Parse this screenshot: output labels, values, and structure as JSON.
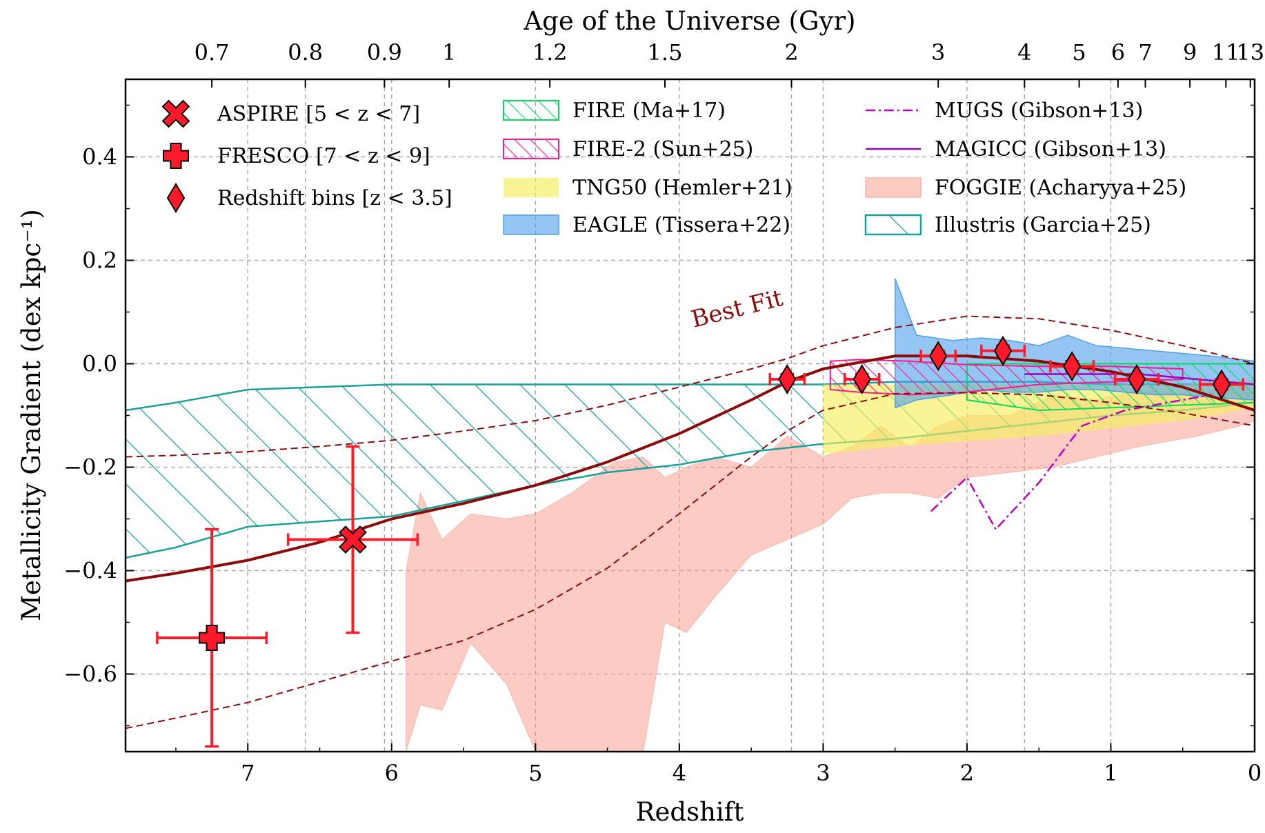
{
  "chart_data": {
    "type": "scatter",
    "xlabel": "Redshift",
    "ylabel": "Metallicity Gradient (dex kpc⁻¹)",
    "top_xlabel": "Age of the Universe (Gyr)",
    "xlim": [
      7.85,
      0
    ],
    "ylim": [
      -0.75,
      0.55
    ],
    "x_ticks": [
      "7",
      "6",
      "5",
      "4",
      "3",
      "2",
      "1",
      "0"
    ],
    "y_ticks": [
      "0.4",
      "0.2",
      "0.0",
      "−0.2",
      "−0.4",
      "−0.6"
    ],
    "top_ticks": [
      {
        "label": "0.7",
        "z": 7.25
      },
      {
        "label": "0.8",
        "z": 6.6
      },
      {
        "label": "0.9",
        "z": 6.05
      },
      {
        "label": "1",
        "z": 5.6
      },
      {
        "label": "1.2",
        "z": 4.9
      },
      {
        "label": "1.5",
        "z": 4.1
      },
      {
        "label": "2",
        "z": 3.22
      },
      {
        "label": "3",
        "z": 2.2
      },
      {
        "label": "4",
        "z": 1.6
      },
      {
        "label": "5",
        "z": 1.22
      },
      {
        "label": "6",
        "z": 0.95
      },
      {
        "label": "7",
        "z": 0.76
      },
      {
        "label": "9",
        "z": 0.45
      },
      {
        "label": "11",
        "z": 0.2
      },
      {
        "label": "13",
        "z": 0.03
      }
    ],
    "grid": true,
    "legend_position": "top",
    "colors": {
      "observed": "#ff1a2a",
      "best_fit": "#8b0a0a",
      "fire": "#00e05a",
      "fire2": "#ff1493",
      "tng50": "#f6f060",
      "eagle": "#4f9fea",
      "mugs": "#c000c0",
      "magicc": "#a000c0",
      "foggie": "#fa9a8a",
      "illustris": "#16a29a",
      "grid": "#aaaaaa"
    },
    "legend": [
      {
        "key": "aspire",
        "label": "ASPIRE  [5 < z < 7]",
        "marker": "x"
      },
      {
        "key": "fresco",
        "label": "FRESCO [7 < z < 9]",
        "marker": "plus"
      },
      {
        "key": "bins",
        "label": "Redshift bins [z < 3.5]",
        "marker": "diamond"
      },
      {
        "key": "fire",
        "label": "FIRE (Ma+17)",
        "marker": "hatch-green"
      },
      {
        "key": "fire2",
        "label": "FIRE-2 (Sun+25)",
        "marker": "hatch-pink"
      },
      {
        "key": "tng50",
        "label": "TNG50 (Hemler+21)",
        "marker": "fill-yellow"
      },
      {
        "key": "eagle",
        "label": "EAGLE (Tissera+22)",
        "marker": "fill-blue"
      },
      {
        "key": "mugs",
        "label": "MUGS (Gibson+13)",
        "marker": "dashdot"
      },
      {
        "key": "magicc",
        "label": "MAGICC (Gibson+13)",
        "marker": "line"
      },
      {
        "key": "foggie",
        "label": "FOGGIE (Acharyya+25)",
        "marker": "fill-salmon"
      },
      {
        "key": "illustris",
        "label": "Illustris (Garcia+25)",
        "marker": "hatch-teal"
      }
    ],
    "annotation": {
      "text": "Best Fit",
      "x": 3.9,
      "y": 0.07
    },
    "series": [
      {
        "name": "ASPIRE",
        "points": [
          {
            "x": 6.27,
            "y": -0.34,
            "xerr": [
              0.45,
              0.45
            ],
            "yerr": [
              0.18,
              0.18
            ]
          }
        ]
      },
      {
        "name": "FRESCO",
        "points": [
          {
            "x": 7.25,
            "y": -0.53,
            "xerr": [
              0.38,
              0.38
            ],
            "yerr": [
              0.21,
              0.21
            ]
          }
        ]
      },
      {
        "name": "Redshift bins",
        "points": [
          {
            "x": 3.25,
            "y": -0.03,
            "xerr": [
              0.12,
              0.12
            ],
            "yerr": [
              0.01,
              0.01
            ]
          },
          {
            "x": 2.73,
            "y": -0.03,
            "xerr": [
              0.12,
              0.12
            ],
            "yerr": [
              0.01,
              0.01
            ]
          },
          {
            "x": 2.2,
            "y": 0.015,
            "xerr": [
              0.12,
              0.12
            ],
            "yerr": [
              0.01,
              0.01
            ]
          },
          {
            "x": 1.75,
            "y": 0.025,
            "xerr": [
              0.15,
              0.15
            ],
            "yerr": [
              0.01,
              0.01
            ]
          },
          {
            "x": 1.27,
            "y": -0.005,
            "xerr": [
              0.15,
              0.15
            ],
            "yerr": [
              0.01,
              0.01
            ]
          },
          {
            "x": 0.82,
            "y": -0.03,
            "xerr": [
              0.15,
              0.15
            ],
            "yerr": [
              0.01,
              0.01
            ]
          },
          {
            "x": 0.23,
            "y": -0.04,
            "xerr": [
              0.15,
              0.15
            ],
            "yerr": [
              0.01,
              0.01
            ]
          }
        ]
      }
    ],
    "best_fit": {
      "x": [
        7.85,
        7.5,
        7.0,
        6.5,
        6.0,
        5.5,
        5.0,
        4.5,
        4.0,
        3.5,
        3.25,
        3.0,
        2.5,
        2.0,
        1.5,
        1.0,
        0.5,
        0.0
      ],
      "y": [
        -0.42,
        -0.405,
        -0.38,
        -0.345,
        -0.3,
        -0.27,
        -0.235,
        -0.19,
        -0.135,
        -0.07,
        -0.035,
        -0.01,
        0.015,
        0.015,
        0.005,
        -0.015,
        -0.045,
        -0.09
      ],
      "upper": [
        -0.18,
        -0.177,
        -0.17,
        -0.16,
        -0.148,
        -0.13,
        -0.11,
        -0.08,
        -0.045,
        -0.01,
        0.01,
        0.035,
        0.07,
        0.092,
        0.087,
        0.065,
        0.035,
        0.0
      ],
      "lower": [
        -0.705,
        -0.685,
        -0.655,
        -0.615,
        -0.575,
        -0.535,
        -0.475,
        -0.395,
        -0.29,
        -0.18,
        -0.13,
        -0.09,
        -0.058,
        -0.056,
        -0.06,
        -0.075,
        -0.095,
        -0.12
      ]
    },
    "mugs": {
      "x": [
        2.25,
        2.0,
        1.8,
        1.5,
        1.2,
        0.9,
        0.5,
        0.3
      ],
      "y": [
        -0.285,
        -0.22,
        -0.32,
        -0.23,
        -0.12,
        -0.09,
        -0.07,
        -0.06
      ]
    },
    "magicc": {
      "x": [
        1.6,
        1.2,
        0.8,
        0.4,
        0.0
      ],
      "y": [
        -0.02,
        -0.02,
        -0.02,
        -0.03,
        -0.04
      ]
    },
    "bands": {
      "foggie": {
        "x": [
          5.9,
          5.8,
          5.65,
          5.45,
          5.2,
          5.0,
          4.75,
          4.45,
          4.25,
          4.1,
          3.95,
          3.75,
          3.5,
          3.25,
          3.0,
          2.8,
          2.6,
          2.4,
          2.2,
          2.0,
          1.7,
          1.4,
          1.1,
          0.8,
          0.4,
          0.1,
          0.0
        ],
        "upper": [
          -0.4,
          -0.25,
          -0.34,
          -0.29,
          -0.3,
          -0.29,
          -0.25,
          -0.19,
          -0.18,
          -0.22,
          -0.2,
          -0.18,
          -0.2,
          -0.14,
          -0.18,
          -0.16,
          -0.12,
          -0.16,
          -0.12,
          -0.1,
          -0.1,
          -0.06,
          -0.07,
          -0.05,
          -0.06,
          -0.04,
          -0.04
        ],
        "lower": [
          -0.75,
          -0.66,
          -0.67,
          -0.54,
          -0.62,
          -0.75,
          -0.75,
          -0.75,
          -0.75,
          -0.5,
          -0.52,
          -0.45,
          -0.37,
          -0.34,
          -0.31,
          -0.26,
          -0.25,
          -0.25,
          -0.26,
          -0.22,
          -0.21,
          -0.2,
          -0.18,
          -0.16,
          -0.14,
          -0.12,
          -0.11
        ]
      },
      "tng50": {
        "x": [
          3.0,
          2.5,
          2.0,
          1.5,
          1.0,
          0.5,
          0.0
        ],
        "upper": [
          -0.04,
          -0.04,
          -0.04,
          -0.04,
          -0.04,
          -0.04,
          -0.03
        ],
        "lower": [
          -0.175,
          -0.16,
          -0.15,
          -0.14,
          -0.125,
          -0.11,
          -0.085
        ]
      },
      "eagle": {
        "x": [
          2.5,
          2.35,
          2.1,
          1.9,
          1.7,
          1.5,
          1.3,
          1.1,
          0.9,
          0.7,
          0.5,
          0.3,
          0.0
        ],
        "upper": [
          0.165,
          0.055,
          0.045,
          0.05,
          0.045,
          0.035,
          0.055,
          0.035,
          0.03,
          0.025,
          0.02,
          0.015,
          0.005
        ],
        "lower": [
          -0.085,
          -0.07,
          -0.06,
          -0.05,
          -0.055,
          -0.055,
          -0.05,
          -0.05,
          -0.055,
          -0.06,
          -0.06,
          -0.065,
          -0.07
        ]
      },
      "fire": {
        "x": [
          2.0,
          1.5,
          1.0,
          0.5,
          0.0
        ],
        "upper": [
          0.0,
          0.0,
          0.0,
          0.0,
          0.0
        ],
        "lower": [
          -0.07,
          -0.09,
          -0.085,
          -0.08,
          -0.075
        ]
      },
      "fire2": {
        "x": [
          2.95,
          2.75,
          2.4,
          2.0,
          1.5,
          1.0,
          0.5
        ],
        "upper": [
          0.005,
          0.008,
          0.005,
          -0.002,
          -0.005,
          -0.005,
          -0.01
        ],
        "lower": [
          -0.05,
          -0.055,
          -0.06,
          -0.055,
          -0.04,
          -0.035,
          -0.03
        ]
      },
      "illustris": {
        "x": [
          7.85,
          7.5,
          7.0,
          6.5,
          6.0,
          5.5,
          5.0,
          4.5,
          4.0,
          3.5,
          3.0,
          2.5,
          2.0,
          1.5,
          1.0,
          0.5,
          0.0
        ],
        "upper": [
          -0.09,
          -0.075,
          -0.05,
          -0.045,
          -0.04,
          -0.04,
          -0.04,
          -0.04,
          -0.04,
          -0.04,
          -0.04,
          -0.035,
          -0.035,
          -0.035,
          -0.04,
          -0.04,
          -0.04
        ],
        "lower": [
          -0.375,
          -0.355,
          -0.315,
          -0.305,
          -0.295,
          -0.265,
          -0.235,
          -0.21,
          -0.195,
          -0.17,
          -0.155,
          -0.145,
          -0.13,
          -0.115,
          -0.1,
          -0.09,
          -0.075
        ]
      }
    }
  }
}
